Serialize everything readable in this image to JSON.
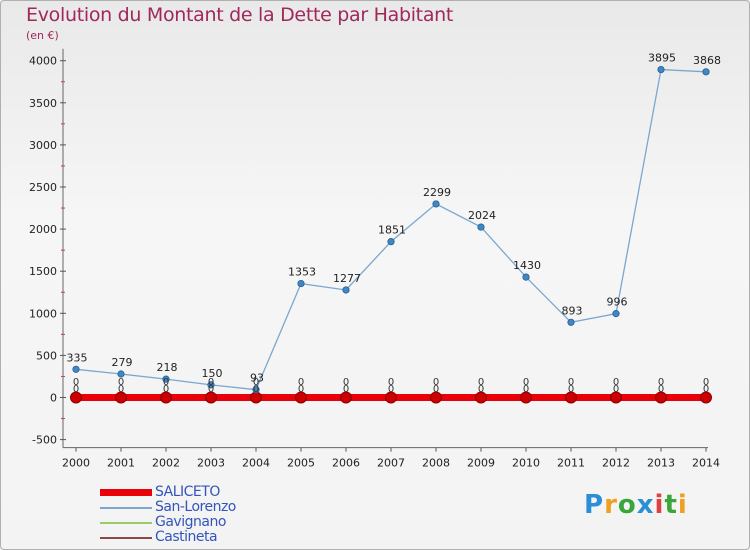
{
  "title": "Evolution du Montant de la Dette par Habitant",
  "subtitle": "(en €)",
  "chart_data": {
    "type": "line",
    "x": [
      "2000",
      "2001",
      "2002",
      "2003",
      "2004",
      "2005",
      "2006",
      "2007",
      "2008",
      "2009",
      "2010",
      "2011",
      "2012",
      "2013",
      "2014"
    ],
    "yticks": [
      "-500",
      "0",
      "500",
      "1000",
      "1500",
      "2000",
      "2500",
      "3000",
      "3500",
      "4000"
    ],
    "ylim": [
      -500,
      4000
    ],
    "series": [
      {
        "name": "SALICETO",
        "color": "#e8000b",
        "values": [
          0,
          0,
          0,
          0,
          0,
          0,
          0,
          0,
          0,
          0,
          0,
          0,
          0,
          0,
          0
        ]
      },
      {
        "name": "San-Lorenzo",
        "color": "#7ba7cf",
        "values": [
          335,
          279,
          218,
          150,
          93,
          1353,
          1277,
          1851,
          2299,
          2024,
          1430,
          893,
          996,
          3895,
          3868
        ]
      },
      {
        "name": "Gavignano",
        "color": "#99cc66",
        "values": [
          0,
          0,
          0,
          0,
          0,
          0,
          0,
          0,
          0,
          0,
          0,
          0,
          0,
          0,
          0
        ]
      },
      {
        "name": "Castineta",
        "color": "#8b4a4a",
        "values": [
          0,
          0,
          0,
          0,
          0,
          0,
          0,
          0,
          0,
          0,
          0,
          0,
          0,
          0,
          0
        ]
      }
    ],
    "value_labels": [
      "335",
      "279",
      "218",
      "150",
      "93",
      "1353",
      "1277",
      "1851",
      "2299",
      "2024",
      "1430",
      "893",
      "996",
      "3895",
      "3868"
    ],
    "zero_labels": [
      "0",
      "0",
      "0",
      "0",
      "0",
      "0",
      "0",
      "0",
      "0",
      "0",
      "0",
      "0",
      "0",
      "0",
      "0"
    ]
  },
  "legend": [
    {
      "label": "SALICETO",
      "color": "#e8000b"
    },
    {
      "label": "San-Lorenzo",
      "color": "#7ba7cf"
    },
    {
      "label": "Gavignano",
      "color": "#99cc66"
    },
    {
      "label": "Castineta",
      "color": "#8b4a4a"
    }
  ],
  "logo": {
    "letters": [
      "P",
      "r",
      "o",
      "x",
      "i",
      "t",
      "i"
    ],
    "colors": [
      "#2a8fd6",
      "#f0a020",
      "#3aa53a",
      "#2a8fd6",
      "#e04040",
      "#3aa53a",
      "#f0a020"
    ]
  }
}
